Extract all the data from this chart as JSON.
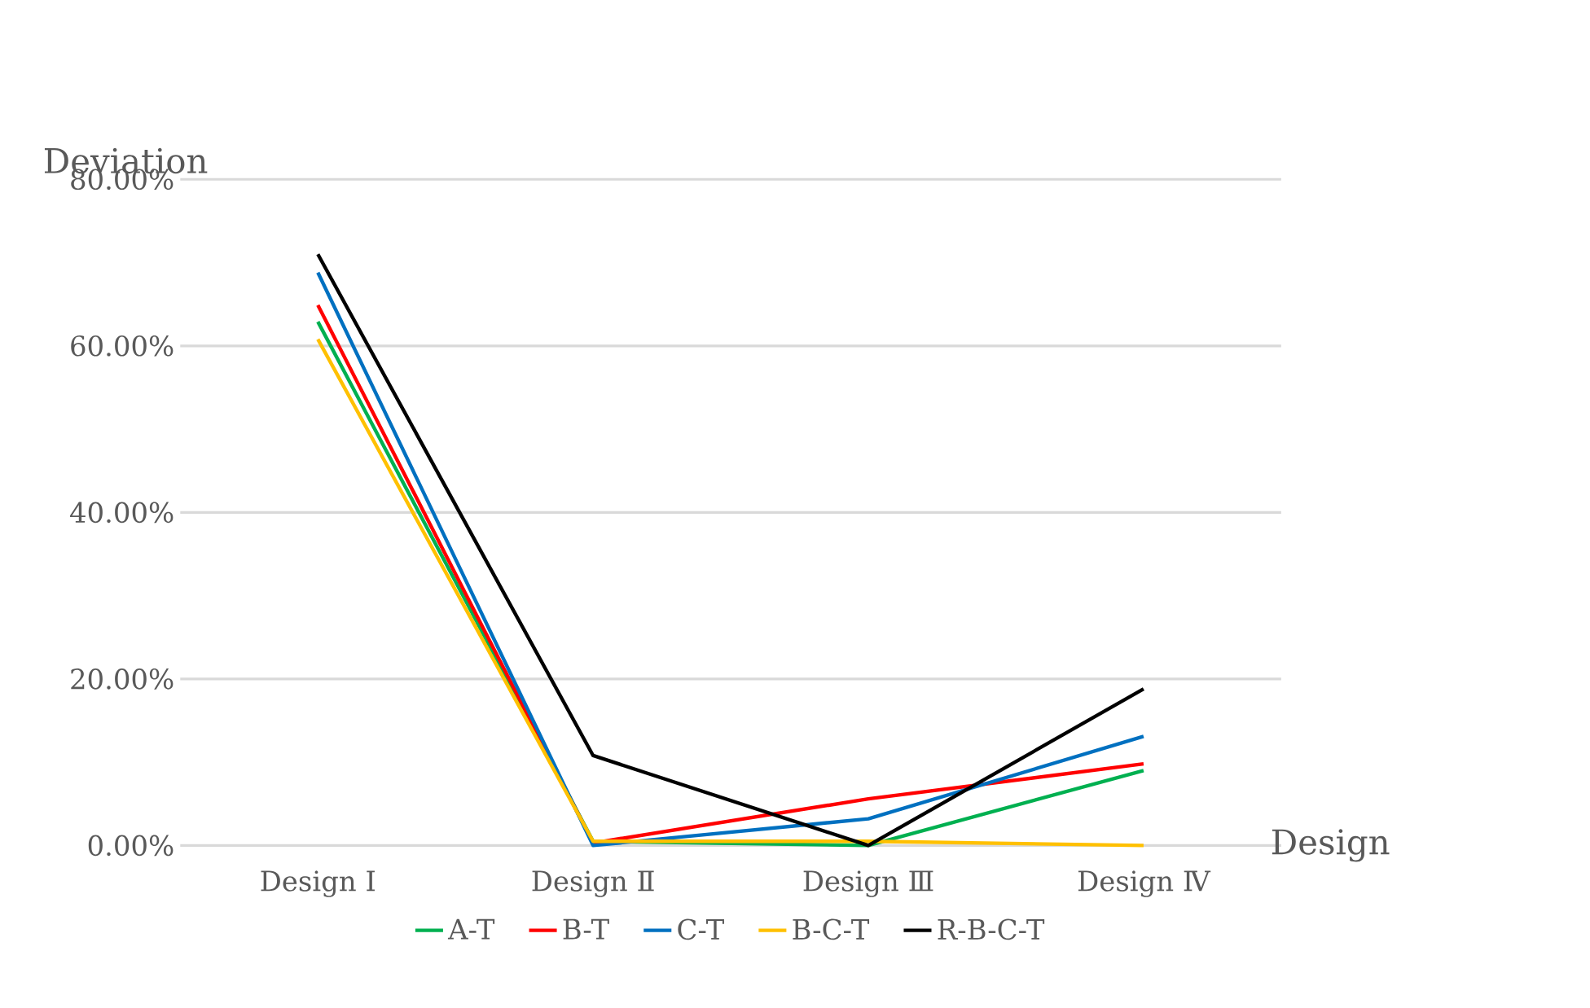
{
  "chart_data": {
    "type": "line",
    "xlabel": "Design",
    "ylabel": "Deviation",
    "categories": [
      "Design Ⅰ",
      "Design Ⅱ",
      "Design Ⅲ",
      "Design Ⅳ"
    ],
    "ylim": [
      0,
      80
    ],
    "yticks": [
      {
        "value": 0,
        "label": "0.00%"
      },
      {
        "value": 20,
        "label": "20.00%"
      },
      {
        "value": 40,
        "label": "40.00%"
      },
      {
        "value": 60,
        "label": "60.00%"
      },
      {
        "value": 80,
        "label": "80.00%"
      }
    ],
    "grid": "y",
    "legend": "bottom",
    "marker": "none",
    "line_style": "solid",
    "series": [
      {
        "name": "A-T",
        "color": "#00b050",
        "values": [
          62.9,
          0.5,
          0,
          9.0
        ]
      },
      {
        "name": "B-T",
        "color": "#ff0000",
        "values": [
          64.9,
          0.3,
          5.6,
          9.8
        ]
      },
      {
        "name": "C-T",
        "color": "#0070c0",
        "values": [
          68.8,
          0,
          3.2,
          13.1
        ]
      },
      {
        "name": "B-C-T",
        "color": "#ffc000",
        "values": [
          60.8,
          0.5,
          0.5,
          0
        ]
      },
      {
        "name": "R-B-C-T",
        "color": "#000000",
        "values": [
          71.0,
          10.8,
          0,
          18.8
        ]
      }
    ]
  }
}
